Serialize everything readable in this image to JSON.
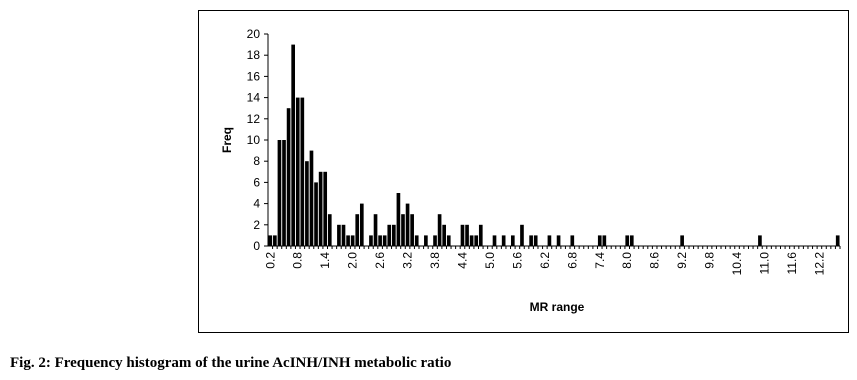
{
  "chart_data": {
    "type": "bar",
    "xlabel": "MR range",
    "ylabel": "Freq",
    "color": "#000000",
    "categories": [
      "0.2",
      null,
      null,
      null,
      null,
      null,
      "0.8",
      null,
      null,
      null,
      null,
      null,
      "1.4",
      null,
      null,
      null,
      null,
      null,
      "2.0",
      null,
      null,
      null,
      null,
      null,
      "2.6",
      null,
      null,
      null,
      null,
      null,
      "3.2",
      null,
      null,
      null,
      null,
      null,
      "3.8",
      null,
      null,
      null,
      null,
      null,
      "4.4",
      null,
      null,
      null,
      null,
      null,
      "5.0",
      null,
      null,
      null,
      null,
      null,
      "5.6",
      null,
      null,
      null,
      null,
      null,
      "6.2",
      null,
      null,
      null,
      null,
      null,
      "6.8",
      null,
      null,
      null,
      null,
      null,
      "7.4",
      null,
      null,
      null,
      null,
      null,
      "8.0",
      null,
      null,
      null,
      null,
      null,
      "8.6",
      null,
      null,
      null,
      null,
      null,
      "9.2",
      null,
      null,
      null,
      null,
      null,
      "9.8",
      null,
      null,
      null,
      null,
      null,
      "10.4",
      null,
      null,
      null,
      null,
      null,
      "11.0",
      null,
      null,
      null,
      null,
      null,
      "11.6",
      null,
      null,
      null,
      null,
      null,
      "12.2",
      null,
      null,
      null,
      null
    ],
    "values": [
      1,
      1,
      10,
      10,
      13,
      19,
      14,
      14,
      8,
      9,
      6,
      7,
      7,
      3,
      0,
      2,
      2,
      1,
      1,
      3,
      4,
      0,
      1,
      3,
      1,
      1,
      2,
      2,
      5,
      3,
      4,
      3,
      1,
      0,
      1,
      0,
      1,
      3,
      2,
      1,
      0,
      0,
      2,
      2,
      1,
      1,
      2,
      0,
      0,
      1,
      0,
      1,
      0,
      1,
      0,
      2,
      0,
      1,
      1,
      0,
      0,
      1,
      0,
      1,
      0,
      0,
      1,
      0,
      0,
      0,
      0,
      0,
      1,
      1,
      0,
      0,
      0,
      0,
      1,
      1,
      0,
      0,
      0,
      0,
      0,
      0,
      0,
      0,
      0,
      0,
      1,
      0,
      0,
      0,
      0,
      0,
      0,
      0,
      0,
      0,
      0,
      0,
      0,
      0,
      0,
      0,
      0,
      1,
      0,
      0,
      0,
      0,
      0,
      0,
      0,
      0,
      0,
      0,
      0,
      0,
      0,
      0,
      0,
      0,
      1
    ],
    "ylim": [
      0,
      20
    ],
    "yticks": [
      0,
      2,
      4,
      6,
      8,
      10,
      12,
      14,
      16,
      18,
      20
    ]
  },
  "caption": "Fig. 2: Frequency histogram of the urine AcINH/INH metabolic ratio"
}
